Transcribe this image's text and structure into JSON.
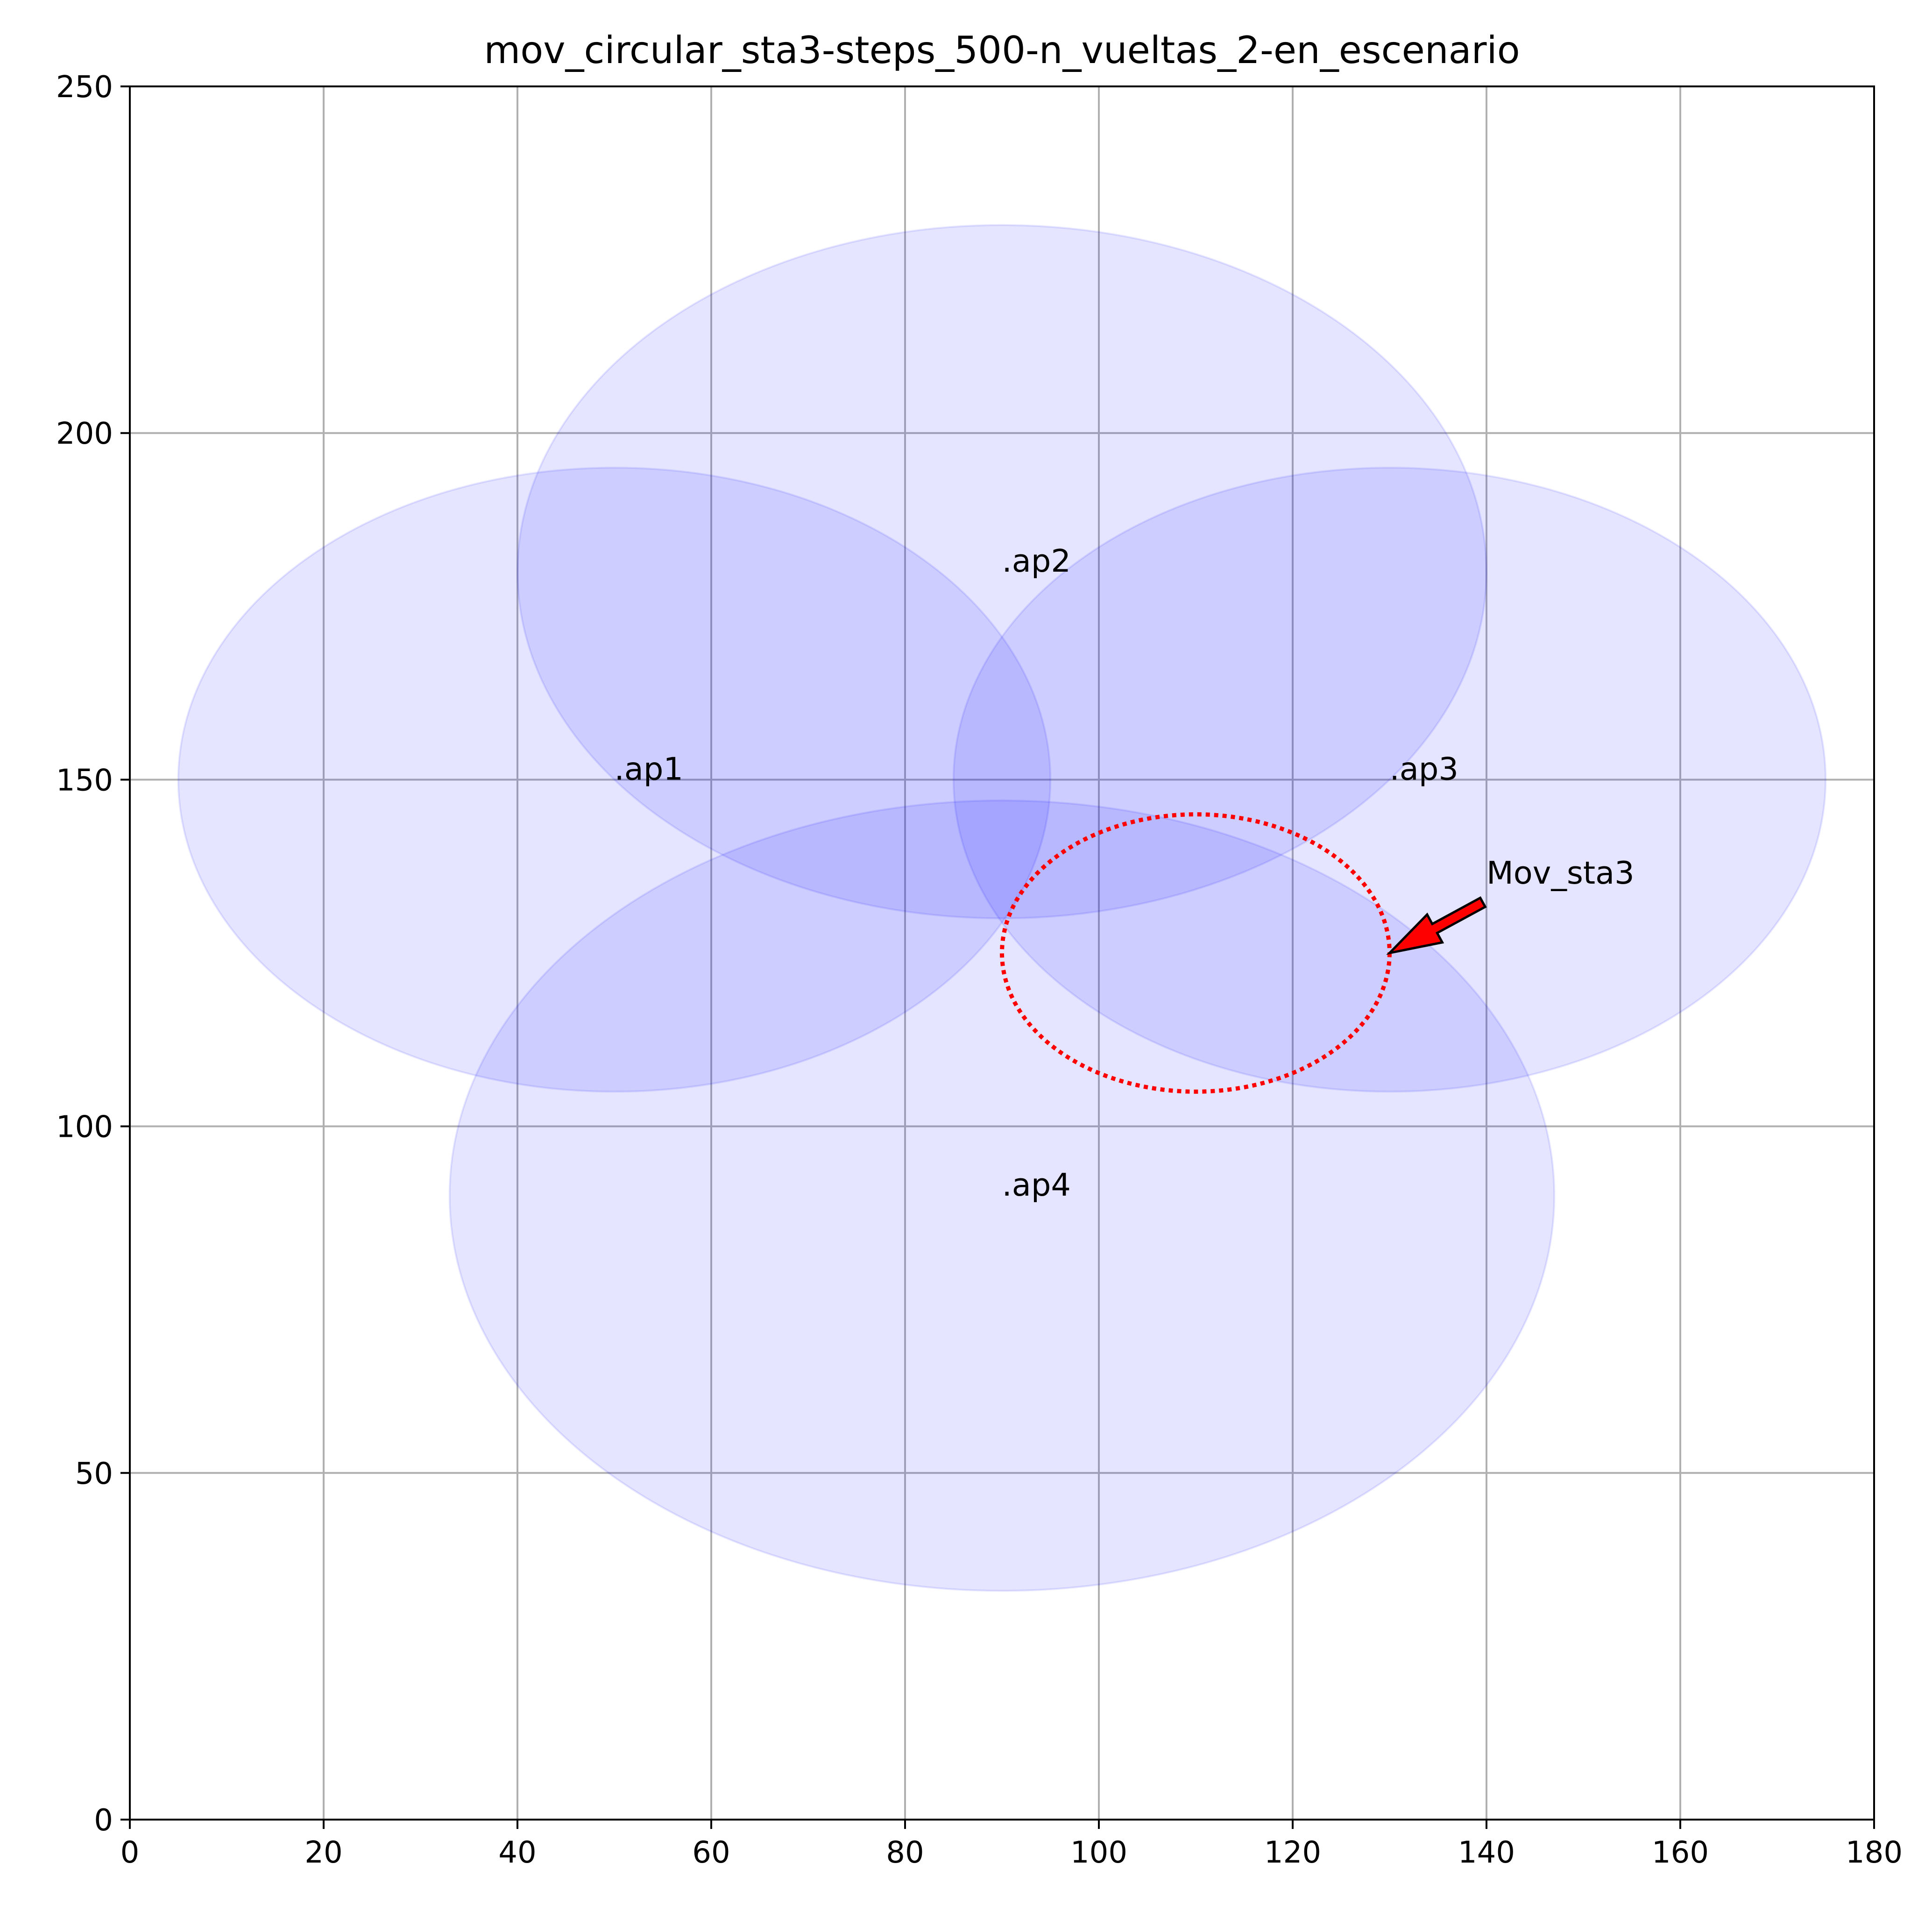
{
  "chart_data": {
    "type": "scatter",
    "title": "mov_circular_sta3-steps_500-n_vueltas_2-en_escenario",
    "xlabel": "",
    "ylabel": "",
    "xlim": [
      0,
      180
    ],
    "ylim": [
      0,
      250
    ],
    "xticks": [
      0,
      20,
      40,
      60,
      80,
      100,
      120,
      140,
      160,
      180
    ],
    "yticks": [
      0,
      50,
      100,
      150,
      200,
      250
    ],
    "grid": true,
    "access_points": [
      {
        "name": ".ap1",
        "x": 50,
        "y": 150,
        "range": 45
      },
      {
        "name": ".ap2",
        "x": 90,
        "y": 180,
        "range": 50
      },
      {
        "name": ".ap3",
        "x": 130,
        "y": 150,
        "range": 45
      },
      {
        "name": ".ap4",
        "x": 90,
        "y": 90,
        "range": 57
      }
    ],
    "coverage_color": "#0000ff",
    "trajectory": {
      "center_x": 110,
      "center_y": 125,
      "radius": 20,
      "color": "#ff0000",
      "style": "dotted"
    },
    "annotation": {
      "text": "Mov_sta3",
      "text_x": 140,
      "text_y": 135,
      "arrow_to_x": 130,
      "arrow_to_y": 125,
      "arrow_color": "#ff0000"
    }
  }
}
